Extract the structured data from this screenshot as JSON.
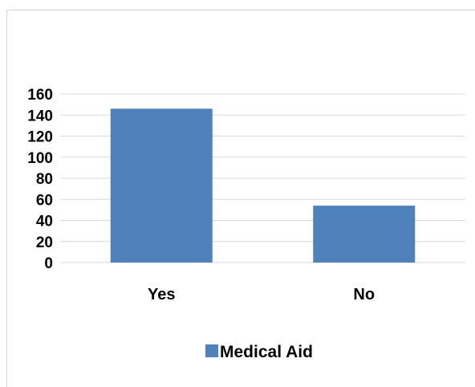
{
  "chart_data": {
    "type": "bar",
    "title": "",
    "xlabel": "",
    "ylabel": "",
    "categories": [
      "Yes",
      "No"
    ],
    "series": [
      {
        "name": "Medical Aid",
        "values": [
          146,
          54
        ],
        "color": "#4f81bd"
      }
    ],
    "ylim": [
      0,
      160
    ],
    "yticks": [
      0,
      20,
      40,
      60,
      80,
      100,
      120,
      140,
      160
    ],
    "grid": true,
    "gridColor": "#d9d9d9",
    "legend": "bottom"
  }
}
